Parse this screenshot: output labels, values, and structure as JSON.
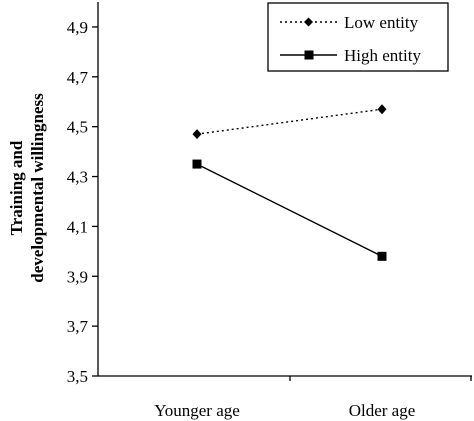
{
  "chart_data": {
    "type": "line",
    "categories": [
      "Younger age",
      "Older age"
    ],
    "series": [
      {
        "name": "Low entity",
        "values": [
          4.47,
          4.57
        ],
        "line_style": "dotted",
        "marker": "diamond"
      },
      {
        "name": "High entity",
        "values": [
          4.35,
          3.98
        ],
        "line_style": "solid",
        "marker": "square"
      }
    ],
    "ylabel_lines": [
      "Training and",
      "developmental willingness"
    ],
    "ylim": [
      3.5,
      5.0
    ],
    "yticks": [
      3.5,
      3.7,
      3.9,
      4.1,
      4.3,
      4.5,
      4.7,
      4.9
    ],
    "ytick_labels": [
      "3,5",
      "3,7",
      "3,9",
      "4,1",
      "4,3",
      "4,5",
      "4,7",
      "4,9"
    ],
    "grid": false,
    "legend_position": "top-right",
    "colors": {
      "line": "#000000",
      "background": "#ffffff"
    }
  }
}
